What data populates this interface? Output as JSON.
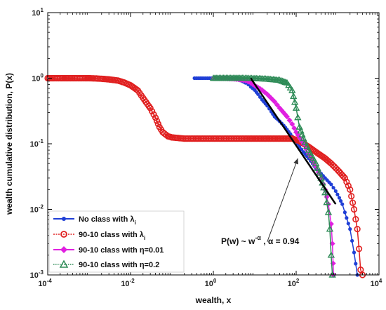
{
  "chart_data": {
    "type": "line",
    "xscale": "log",
    "yscale": "log",
    "xlim": [
      0.0001,
      10000
    ],
    "ylim": [
      0.001,
      10
    ],
    "xlabel": "wealth, x",
    "ylabel": "wealth cumulative distribution, P(x)",
    "grid": false,
    "legend_position": "bottom-left",
    "x_ticks": [
      0.0001,
      0.01,
      1,
      100,
      10000
    ],
    "x_tick_labels": [
      {
        "base": "10",
        "exp": "-4"
      },
      {
        "base": "10",
        "exp": "-2"
      },
      {
        "base": "10",
        "exp": "0"
      },
      {
        "base": "10",
        "exp": "2"
      },
      {
        "base": "10",
        "exp": "4"
      }
    ],
    "y_ticks": [
      0.001,
      0.01,
      0.1,
      1,
      10
    ],
    "y_tick_labels": [
      {
        "base": "10",
        "exp": "-3"
      },
      {
        "base": "10",
        "exp": "-2"
      },
      {
        "base": "10",
        "exp": "-1"
      },
      {
        "base": "10",
        "exp": "0"
      },
      {
        "base": "10",
        "exp": "1"
      }
    ],
    "series": [
      {
        "label_main": "No class with λ",
        "label_sub": "i",
        "color": "#1f3fd6",
        "marker": "dot",
        "x": [
          0.35,
          1,
          2,
          3,
          4,
          5,
          6,
          7,
          8,
          10,
          12,
          15,
          20,
          25,
          30,
          40,
          50,
          60,
          80,
          100,
          120,
          150,
          200,
          250,
          300,
          400,
          500,
          700,
          900,
          1100,
          1300,
          1500,
          2000,
          2500,
          3000
        ],
        "y": [
          1.0,
          1.0,
          0.99,
          0.98,
          0.95,
          0.9,
          0.85,
          0.8,
          0.74,
          0.66,
          0.57,
          0.47,
          0.38,
          0.31,
          0.26,
          0.22,
          0.19,
          0.165,
          0.13,
          0.11,
          0.09,
          0.075,
          0.06,
          0.05,
          0.042,
          0.035,
          0.03,
          0.024,
          0.019,
          0.015,
          0.012,
          0.009,
          0.005,
          0.0022,
          0.001
        ]
      },
      {
        "label_main": "90-10 class with λ",
        "label_sub": "i",
        "color": "#e02020",
        "marker": "circle",
        "x": [
          0.0001,
          0.00015,
          0.0002,
          0.0003,
          0.0005,
          0.0008,
          0.001,
          0.0015,
          0.002,
          0.003,
          0.005,
          0.007,
          0.01,
          0.015,
          0.02,
          0.03,
          0.04,
          0.05,
          0.06,
          0.08,
          0.1,
          0.2,
          0.35,
          0.5,
          0.8,
          2,
          5,
          10,
          20,
          40,
          80,
          120,
          200,
          300,
          500,
          700,
          1000,
          1500,
          2000,
          2500,
          3000,
          3300,
          3600,
          4000
        ],
        "y": [
          1.0,
          1.0,
          1.0,
          1.0,
          1.0,
          1.0,
          1.0,
          0.99,
          0.98,
          0.96,
          0.92,
          0.86,
          0.78,
          0.65,
          0.5,
          0.35,
          0.25,
          0.18,
          0.15,
          0.13,
          0.125,
          0.12,
          0.12,
          0.12,
          0.12,
          0.12,
          0.12,
          0.12,
          0.12,
          0.12,
          0.12,
          0.11,
          0.09,
          0.075,
          0.06,
          0.05,
          0.04,
          0.03,
          0.02,
          0.01,
          0.005,
          0.0025,
          0.0012,
          0.001
        ]
      },
      {
        "label_main": "90-10 class with η=0.01",
        "color": "#e020e0",
        "marker": "diamond",
        "x": [
          1,
          2,
          4,
          6,
          8,
          10,
          15,
          20,
          30,
          40,
          60,
          80,
          100,
          150,
          200,
          300,
          400,
          500,
          600,
          700,
          750,
          780,
          800
        ],
        "y": [
          1.0,
          0.99,
          0.96,
          0.92,
          0.85,
          0.77,
          0.66,
          0.57,
          0.44,
          0.35,
          0.26,
          0.2,
          0.15,
          0.1,
          0.07,
          0.045,
          0.03,
          0.02,
          0.012,
          0.006,
          0.003,
          0.0015,
          0.001
        ]
      },
      {
        "label_main": "90-10 class with η=0.2",
        "color": "#2e8b57",
        "marker": "triangle",
        "x": [
          1,
          5,
          10,
          20,
          40,
          60,
          80,
          100,
          120,
          150,
          200,
          300,
          400,
          500,
          600,
          650,
          700,
          750
        ],
        "y": [
          1.0,
          1.0,
          0.99,
          0.97,
          0.93,
          0.85,
          0.65,
          0.35,
          0.18,
          0.12,
          0.08,
          0.05,
          0.03,
          0.018,
          0.009,
          0.005,
          0.002,
          0.001
        ]
      }
    ],
    "fit_line": {
      "x": [
        8,
        900
      ],
      "y": [
        1.0,
        0.012
      ]
    },
    "annotation": {
      "text_main": "P(w) ~ w",
      "text_exp": "-α",
      "text_rest": " , α = 0.94",
      "arrow_from": [
        20,
        0.0032
      ],
      "arrow_to": [
        110,
        0.06
      ]
    }
  }
}
